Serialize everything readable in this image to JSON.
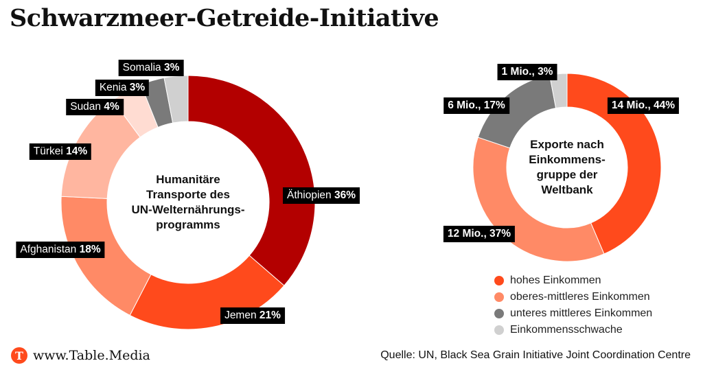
{
  "title": "Schwarzmeer-Getreide-Initiative",
  "footer": {
    "logo_letter": "T",
    "logo_text": "www.Table.Media",
    "source": "Quelle: UN, Black Sea Grain Initiative Joint Coordination Centre"
  },
  "legend": [
    {
      "label": "hohes Einkommen",
      "color": "#ff4a1c"
    },
    {
      "label": "oberes-mittleres Einkommen",
      "color": "#ff8a66"
    },
    {
      "label": "unteres mittleres Einkommen",
      "color": "#7a7a7a"
    },
    {
      "label": "Einkommensschwache",
      "color": "#d0d0d0"
    }
  ],
  "chart_data": [
    {
      "type": "pie",
      "center_label": "Humanitäre Transporte des UN-Welternährungs-programms",
      "center_lines": [
        "Humanitäre",
        "Transporte des",
        "UN-Welternährungs-",
        "programms"
      ],
      "slices": [
        {
          "name": "Äthiopien",
          "value": 36,
          "display": "36%",
          "color": "#b30000"
        },
        {
          "name": "Jemen",
          "value": 21,
          "display": "21%",
          "color": "#ff4a1c"
        },
        {
          "name": "Afghanistan",
          "value": 18,
          "display": "18%",
          "color": "#ff8a66"
        },
        {
          "name": "Türkei",
          "value": 14,
          "display": "14%",
          "color": "#ffb6a0"
        },
        {
          "name": "Sudan",
          "value": 4,
          "display": "4%",
          "color": "#ffdcd2"
        },
        {
          "name": "Kenia",
          "value": 3,
          "display": "3%",
          "color": "#7a7a7a"
        },
        {
          "name": "Somalia",
          "value": 3,
          "display": "3%",
          "color": "#d0d0d0"
        }
      ]
    },
    {
      "type": "pie",
      "center_label": "Exporte nach Einkommens-gruppe der Weltbank",
      "center_lines": [
        "Exporte nach",
        "Einkommens-",
        "gruppe der",
        "Weltbank"
      ],
      "slices": [
        {
          "name": "hohes Einkommen",
          "value": 44,
          "display": "14 Mio., 44%",
          "color": "#ff4a1c"
        },
        {
          "name": "oberes-mittleres Einkommen",
          "value": 37,
          "display": "12 Mio., 37%",
          "color": "#ff8a66"
        },
        {
          "name": "unteres mittleres Einkommen",
          "value": 17,
          "display": "6 Mio., 17%",
          "color": "#7a7a7a"
        },
        {
          "name": "Einkommensschwache",
          "value": 3,
          "display": "1 Mio., 3%",
          "color": "#d0d0d0"
        }
      ]
    }
  ]
}
